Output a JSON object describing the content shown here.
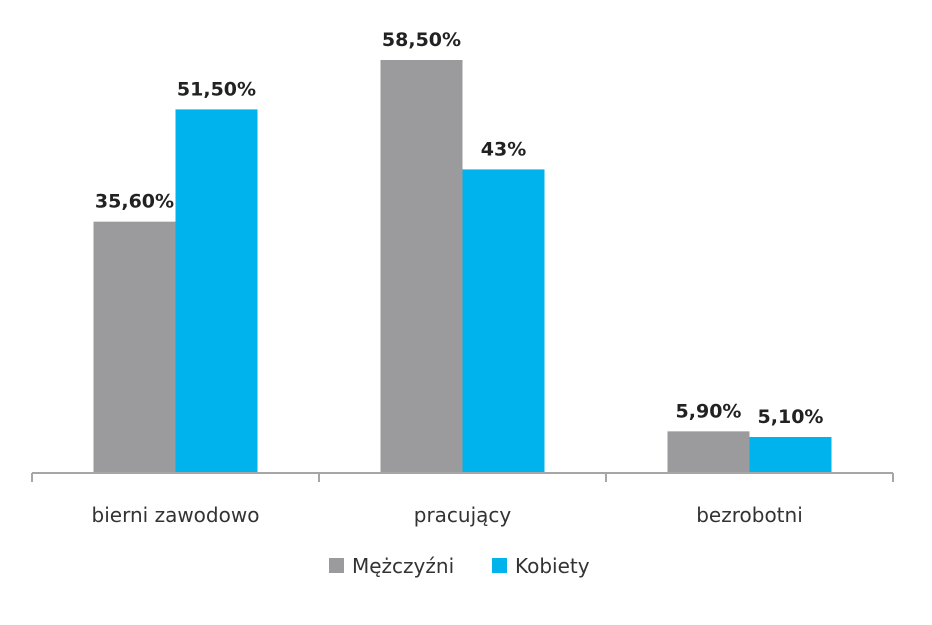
{
  "chart_data": {
    "type": "bar",
    "categories": [
      "bierni zawodowo",
      "pracujący",
      "bezrobotni"
    ],
    "series": [
      {
        "name": "Mężczyźni",
        "color": "#9b9b9e",
        "values": [
          35.6,
          58.5,
          5.9
        ],
        "labels": [
          "35,60%",
          "58,50%",
          "5,90%"
        ]
      },
      {
        "name": "Kobiety",
        "color": "#00b3ec",
        "values": [
          51.5,
          43,
          5.1
        ],
        "labels": [
          "51,50%",
          "43%",
          "5,10%"
        ]
      }
    ],
    "ylim": [
      0,
      60
    ],
    "grid": false,
    "legend_position": "bottom-center",
    "axis_color": "#a6a6a6"
  }
}
